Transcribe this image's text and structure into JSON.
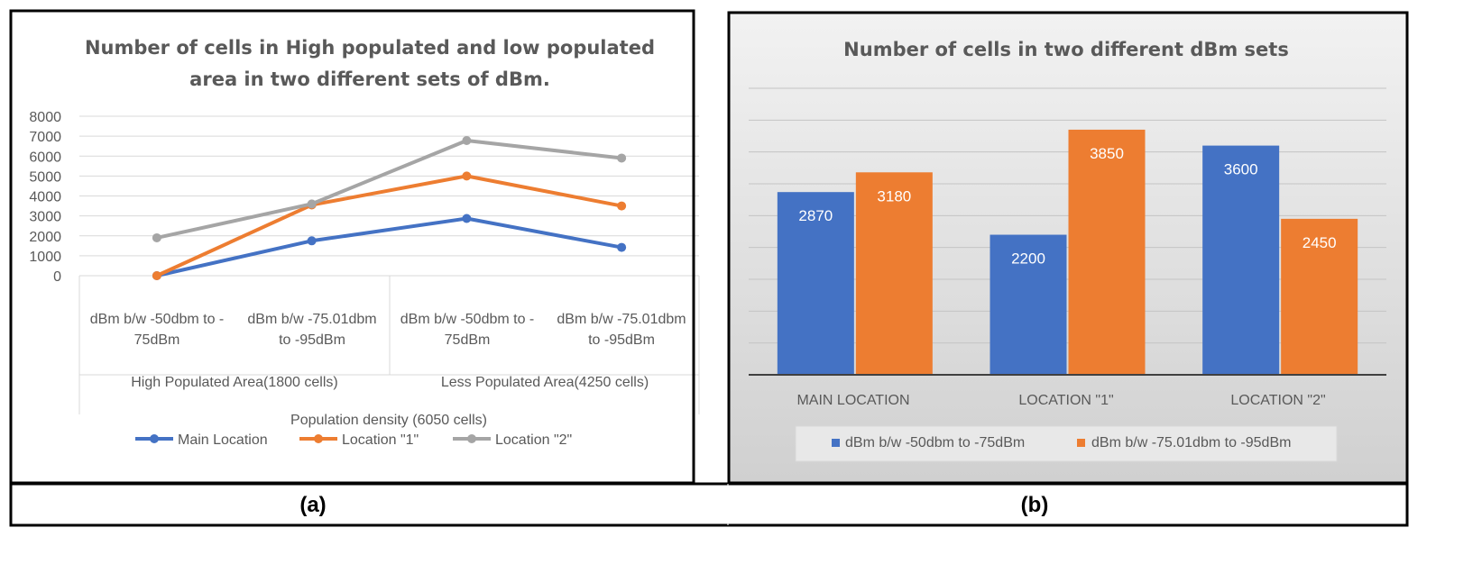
{
  "colors": {
    "blue": "#4472C4",
    "orange": "#ED7D31",
    "gray": "#A5A5A5"
  },
  "captions": {
    "a": "(a)",
    "b": "(b)"
  },
  "chart_data": [
    {
      "type": "line",
      "title_lines": [
        "Number of cells in High populated and low populated",
        "area in two different sets of dBm."
      ],
      "categories": [
        [
          "dBm b/w -50dbm to -",
          "75dBm"
        ],
        [
          "dBm b/w -75.01dbm",
          "to -95dBm"
        ],
        [
          "dBm b/w -50dbm to -",
          "75dBm"
        ],
        [
          "dBm b/w -75.01dbm",
          "to -95dBm"
        ]
      ],
      "groups": [
        "High Populated Area(1800 cells)",
        "Less Populated Area(4250 cells)"
      ],
      "supergroup": "Population density (6050 cells)",
      "yticks": [
        "0",
        "1000",
        "2000",
        "3000",
        "4000",
        "5000",
        "6000",
        "7000",
        "8000"
      ],
      "ylim": [
        0,
        8000
      ],
      "series": [
        {
          "name": "Main Location",
          "color_key": "blue",
          "values": [
            0,
            1750,
            2870,
            1420
          ]
        },
        {
          "name": "Location \"1\"",
          "color_key": "orange",
          "values": [
            0,
            3550,
            5000,
            3500
          ]
        },
        {
          "name": "Location \"2\"",
          "color_key": "gray",
          "values": [
            1900,
            3600,
            6780,
            5900
          ]
        }
      ],
      "legend_position": "bottom"
    },
    {
      "type": "bar",
      "title": "Number of cells in two different dBm sets",
      "categories": [
        "MAIN LOCATION",
        "LOCATION \"1\"",
        "LOCATION \"2\""
      ],
      "ylim": [
        0,
        4500
      ],
      "series": [
        {
          "name": "dBm b/w -50dbm to -75dBm",
          "color_key": "blue",
          "values": [
            2870,
            2200,
            3600
          ],
          "labels": [
            "2870",
            "2200",
            "3600"
          ]
        },
        {
          "name": "dBm b/w -75.01dbm to -95dBm",
          "color_key": "orange",
          "values": [
            3180,
            3850,
            2450
          ],
          "labels": [
            "3180",
            "3850",
            "2450"
          ]
        }
      ],
      "grid": true,
      "legend_position": "bottom"
    }
  ]
}
